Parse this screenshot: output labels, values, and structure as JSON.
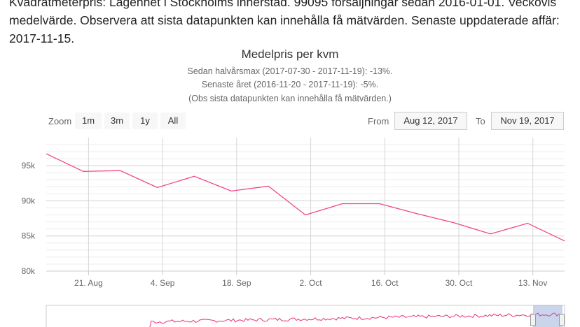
{
  "intro": {
    "line1": "Kvadratmeterpris: Lägenhet i Stockholms innerstad. 99095 försäljningar sedan 2016-01-01. Veckovis",
    "line2": "medelvärde. Observera att sista datapunkten kan innehålla få mätvärden. Senaste uppdaterade affär:",
    "line3": "2017-11-15."
  },
  "rangeSelector": {
    "zoom_label": "Zoom",
    "buttons": [
      "1m",
      "3m",
      "1y",
      "All"
    ],
    "from_label": "From",
    "from_value": "Aug 12, 2017",
    "to_label": "To",
    "to_value": "Nov 19, 2017"
  },
  "chart_data": {
    "type": "line",
    "title": "Medelpris per kvm",
    "subtitle": [
      "Sedan halvårsmax (2017-07-30 - 2017-11-19): -13%.",
      "Senaste året (2016-11-20 - 2017-11-19): -5%.",
      "(Obs sista datapunkten kan innehålla få mätvärden.)"
    ],
    "x": [
      "2017-08-13",
      "2017-08-20",
      "2017-08-27",
      "2017-09-03",
      "2017-09-10",
      "2017-09-17",
      "2017-09-24",
      "2017-10-01",
      "2017-10-08",
      "2017-10-15",
      "2017-10-22",
      "2017-10-29",
      "2017-11-05",
      "2017-11-12",
      "2017-11-19"
    ],
    "series": [
      {
        "name": "",
        "values": [
          96700,
          94200,
          94300,
          91900,
          93500,
          91400,
          92100,
          88000,
          89600,
          89600,
          88200,
          86900,
          85300,
          86800,
          84300
        ]
      }
    ],
    "x_tick_labels": [
      "21. Aug",
      "4. Sep",
      "18. Sep",
      "2. Oct",
      "16. Oct",
      "30. Oct",
      "13. Nov"
    ],
    "y_ticks": [
      80000,
      85000,
      90000,
      95000
    ],
    "y_tick_labels": [
      "80k",
      "85k",
      "90k",
      "95k"
    ],
    "ylim": [
      80000,
      99000
    ],
    "grid": true,
    "line_color": "#f0468c",
    "navigator_color": "#e8317e"
  }
}
